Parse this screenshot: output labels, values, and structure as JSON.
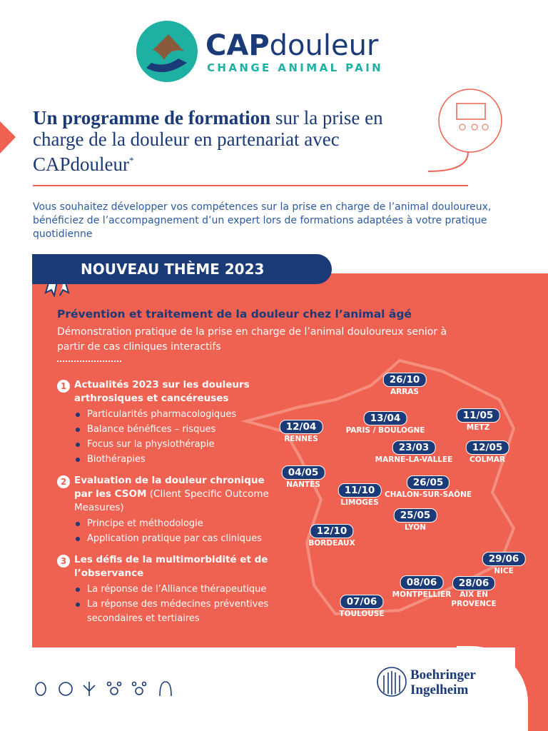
{
  "logo": {
    "brand_bold": "CAP",
    "brand_light": "douleur",
    "tagline": "CHANGE ANIMAL PAIN"
  },
  "heading": {
    "bold": "Un programme de formation",
    "rest": " sur la prise en charge de la douleur en partenariat avec CAPdouleur",
    "mark": "*"
  },
  "intro": "Vous souhaitez développer vos compétences sur la prise en charge de l’animal douloureux, bénéficiez de l’accompagnement d’un expert lors de formations adaptées à votre pratique quotidienne",
  "banner": "NOUVEAU THÈME 2023",
  "theme": {
    "title": "Prévention et traitement de la douleur chez l’animal âgé",
    "description": "Démonstration pratique de la prise en charge de l’animal douloureux senior à partir de cas cliniques interactifs"
  },
  "sections": [
    {
      "number": "1",
      "title": "Actualités 2023 sur les douleurs arthrosiques et cancéreuses",
      "bullets": [
        "Particularités pharmacologiques",
        "Balance bénéfices – risques",
        "Focus sur la physiothérapie",
        "Biothérapies"
      ]
    },
    {
      "number": "2",
      "title": "Evaluation de la douleur chronique par les CSOM",
      "subtitle": " (Client Specific Outcome Measures)",
      "bullets": [
        "Principe et méthodologie",
        "Application pratique par cas cliniques"
      ]
    },
    {
      "number": "3",
      "title": "Les défis de la multimorbidité et de l’observance",
      "bullets": [
        "La réponse de l’Alliance thérapeutique",
        "La réponse des médecines préventives secondaires et tertiaires"
      ]
    }
  ],
  "sessions": [
    {
      "date": "26/10",
      "city": "ARRAS"
    },
    {
      "date": "12/04",
      "city": "RENNES"
    },
    {
      "date": "13/04",
      "city": "PARIS / BOULOGNE"
    },
    {
      "date": "11/05",
      "city": "METZ"
    },
    {
      "date": "23/03",
      "city": "MARNE-LA-VALLEE"
    },
    {
      "date": "12/05",
      "city": "COLMAR"
    },
    {
      "date": "04/05",
      "city": "NANTES"
    },
    {
      "date": "26/05",
      "city": "CHALON-SUR-SAÔNE"
    },
    {
      "date": "11/10",
      "city": "LIMOGES"
    },
    {
      "date": "25/05",
      "city": "LYON"
    },
    {
      "date": "12/10",
      "city": "BORDEAUX"
    },
    {
      "date": "29/06",
      "city": "NICE"
    },
    {
      "date": "08/06",
      "city": "MONTPELLIER"
    },
    {
      "date": "28/06",
      "city": "AIX EN PROVENCE"
    },
    {
      "date": "07/06",
      "city": "TOULOUSE"
    }
  ],
  "footer": {
    "company_line1": "Boehringer",
    "company_line2": "Ingelheim"
  }
}
